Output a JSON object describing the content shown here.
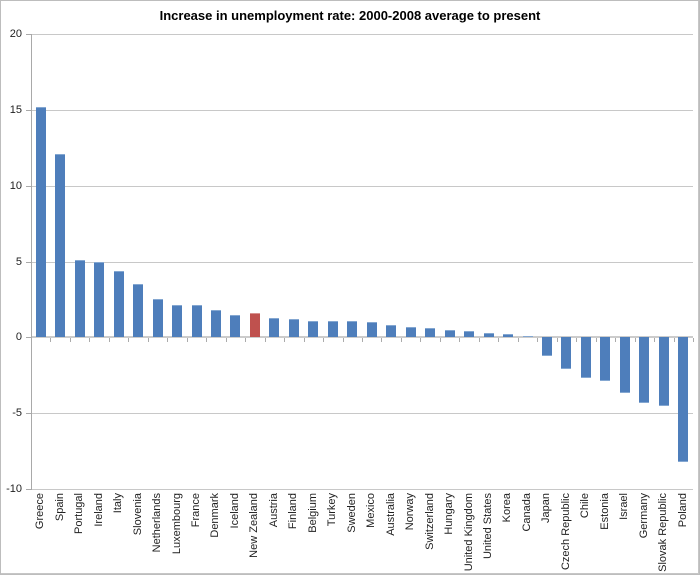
{
  "chart_data": {
    "type": "bar",
    "title": "Increase in unemployment rate: 2000-2008 average to present",
    "categories": [
      "Greece",
      "Spain",
      "Portugal",
      "Ireland",
      "Italy",
      "Slovenia",
      "Netherlands",
      "Luxembourg",
      "France",
      "Denmark",
      "Iceland",
      "New Zealand",
      "Austria",
      "Finland",
      "Belgium",
      "Turkey",
      "Sweden",
      "Mexico",
      "Australia",
      "Norway",
      "Switzerland",
      "Hungary",
      "United Kingdom",
      "United States",
      "Korea",
      "Canada",
      "Japan",
      "Czech Republic",
      "Chile",
      "Estonia",
      "Israel",
      "Germany",
      "Slovak Republic",
      "Poland"
    ],
    "values": [
      15.2,
      12.1,
      5.1,
      5.0,
      4.4,
      3.5,
      2.5,
      2.1,
      2.1,
      1.8,
      1.5,
      1.6,
      1.3,
      1.2,
      1.1,
      1.1,
      1.1,
      1.0,
      0.8,
      0.7,
      0.6,
      0.5,
      0.4,
      0.3,
      0.2,
      0.1,
      -1.2,
      -2.1,
      -2.7,
      -2.9,
      -3.7,
      -4.3,
      -4.5,
      -8.2
    ],
    "highlighted_category": "New Zealand",
    "xlabel": "",
    "ylabel": "",
    "y_ticks": [
      20,
      15,
      10,
      5,
      0,
      -5,
      -10
    ],
    "ylim": [
      -10,
      20
    ],
    "grid": true,
    "legend": false,
    "colors": {
      "bar": "#4e7ebb",
      "bar_edge": "#84a7d1",
      "highlight_bar": "#bf514e",
      "highlight_edge": "#d8928f",
      "gridline": "#c8c8c8",
      "axis": "#a9a9a9",
      "text": "#1f1f1f",
      "background": "#ffffff"
    }
  }
}
